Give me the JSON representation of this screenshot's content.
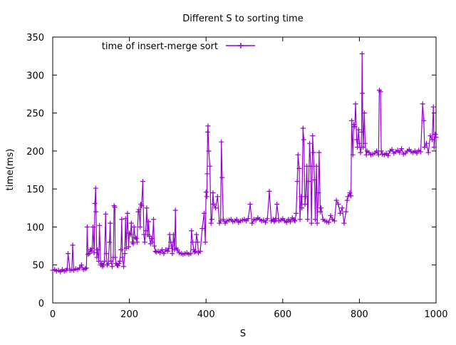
{
  "chart_data": {
    "type": "line",
    "title": "Different S to sorting time",
    "xlabel": "S",
    "ylabel": "time(ms)",
    "xlim": [
      0,
      1000
    ],
    "ylim": [
      0,
      350
    ],
    "xticks": [
      0,
      200,
      400,
      600,
      800,
      1000
    ],
    "yticks": [
      0,
      50,
      100,
      150,
      200,
      250,
      300,
      350
    ],
    "legend": "top-left",
    "grid": false,
    "series": [
      {
        "name": "time of insert-merge sort",
        "color": "#9400d3",
        "marker": "plus",
        "x": [
          0,
          5,
          10,
          15,
          20,
          25,
          30,
          35,
          38,
          40,
          45,
          50,
          52,
          55,
          60,
          65,
          70,
          75,
          80,
          85,
          88,
          90,
          92,
          95,
          98,
          100,
          103,
          105,
          108,
          110,
          112,
          113,
          115,
          117,
          120,
          122,
          125,
          128,
          130,
          132,
          135,
          138,
          140,
          142,
          145,
          148,
          150,
          152,
          155,
          158,
          160,
          162,
          163,
          165,
          168,
          170,
          173,
          175,
          178,
          180,
          182,
          185,
          188,
          190,
          192,
          195,
          198,
          200,
          203,
          205,
          208,
          210,
          212,
          215,
          218,
          220,
          223,
          225,
          228,
          230,
          232,
          235,
          238,
          240,
          243,
          245,
          248,
          250,
          252,
          255,
          258,
          260,
          263,
          265,
          268,
          270,
          275,
          280,
          285,
          290,
          295,
          300,
          303,
          305,
          308,
          310,
          312,
          315,
          318,
          320,
          322,
          325,
          330,
          335,
          340,
          345,
          350,
          355,
          360,
          362,
          365,
          368,
          370,
          372,
          375,
          378,
          380,
          385,
          390,
          395,
          398,
          400,
          402,
          403,
          404,
          405,
          407,
          410,
          413,
          415,
          418,
          420,
          425,
          430,
          435,
          438,
          440,
          442,
          445,
          450,
          455,
          460,
          465,
          470,
          475,
          480,
          485,
          490,
          495,
          500,
          505,
          510,
          515,
          520,
          525,
          530,
          535,
          540,
          545,
          550,
          555,
          560,
          565,
          570,
          575,
          578,
          580,
          582,
          585,
          590,
          595,
          600,
          605,
          610,
          615,
          620,
          625,
          630,
          632,
          635,
          638,
          640,
          643,
          645,
          648,
          650,
          653,
          655,
          658,
          660,
          663,
          665,
          668,
          670,
          673,
          675,
          678,
          680,
          683,
          685,
          688,
          690,
          693,
          695,
          698,
          700,
          705,
          710,
          715,
          720,
          725,
          730,
          735,
          740,
          745,
          750,
          755,
          760,
          765,
          768,
          770,
          775,
          778,
          780,
          783,
          785,
          788,
          790,
          793,
          795,
          798,
          800,
          803,
          805,
          806,
          807,
          808,
          810,
          813,
          815,
          818,
          820,
          825,
          830,
          835,
          840,
          845,
          850,
          852,
          855,
          857,
          860,
          865,
          870,
          875,
          880,
          885,
          890,
          895,
          900,
          905,
          910,
          915,
          920,
          925,
          930,
          935,
          940,
          945,
          950,
          955,
          960,
          965,
          968,
          970,
          975,
          980,
          985,
          990,
          993,
          995,
          998,
          1000
        ],
        "y": [
          43,
          44,
          42,
          43,
          41,
          44,
          42,
          43,
          45,
          65,
          43,
          44,
          76,
          43,
          45,
          44,
          46,
          50,
          44,
          45,
          46,
          100,
          64,
          65,
          70,
          68,
          72,
          100,
          66,
          131,
          151,
          120,
          60,
          70,
          55,
          102,
          50,
          52,
          48,
          50,
          55,
          117,
          65,
          50,
          52,
          80,
          105,
          55,
          48,
          60,
          128,
          126,
          60,
          52,
          50,
          49,
          52,
          55,
          70,
          110,
          60,
          48,
          65,
          111,
          72,
          118,
          74,
          92,
          90,
          105,
          80,
          78,
          100,
          86,
          85,
          80,
          120,
          123,
          100,
          130,
          128,
          160,
          90,
          80,
          95,
          125,
          90,
          107,
          88,
          78,
          85,
          80,
          110,
          75,
          68,
          67,
          68,
          66,
          70,
          65,
          70,
          68,
          72,
          90,
          80,
          75,
          65,
          90,
          70,
          122,
          72,
          70,
          66,
          65,
          64,
          65,
          66,
          64,
          65,
          95,
          80,
          70,
          67,
          68,
          90,
          80,
          66,
          68,
          98,
          118,
          80,
          146,
          140,
          170,
          225,
          233,
          200,
          180,
          105,
          110,
          145,
          130,
          125,
          140,
          105,
          108,
          212,
          165,
          110,
          105,
          108,
          109,
          110,
          107,
          108,
          110,
          106,
          108,
          109,
          110,
          108,
          111,
          130,
          105,
          110,
          109,
          112,
          110,
          108,
          109,
          106,
          111,
          147,
          108,
          110,
          107,
          109,
          111,
          130,
          108,
          109,
          111,
          108,
          106,
          110,
          107,
          112,
          109,
          108,
          118,
          160,
          195,
          177,
          110,
          140,
          125,
          230,
          215,
          130,
          140,
          180,
          110,
          160,
          210,
          180,
          105,
          220,
          198,
          162,
          110,
          180,
          105,
          145,
          198,
          120,
          125,
          110,
          108,
          107,
          106,
          115,
          110,
          108,
          135,
          130,
          118,
          125,
          105,
          120,
          135,
          140,
          145,
          141,
          240,
          195,
          235,
          232,
          262,
          215,
          205,
          228,
          210,
          198,
          205,
          225,
          328,
          276,
          205,
          250,
          210,
          195,
          200,
          198,
          195,
          196,
          197,
          200,
          195,
          280,
          278,
          200,
          196,
          195,
          197,
          194,
          200,
          202,
          197,
          199,
          201,
          198,
          203,
          196,
          197,
          200,
          202,
          199,
          198,
          200,
          197,
          201,
          199,
          262,
          240,
          205,
          210,
          198,
          220,
          215,
          258,
          205,
          222,
          218
        ]
      }
    ]
  }
}
